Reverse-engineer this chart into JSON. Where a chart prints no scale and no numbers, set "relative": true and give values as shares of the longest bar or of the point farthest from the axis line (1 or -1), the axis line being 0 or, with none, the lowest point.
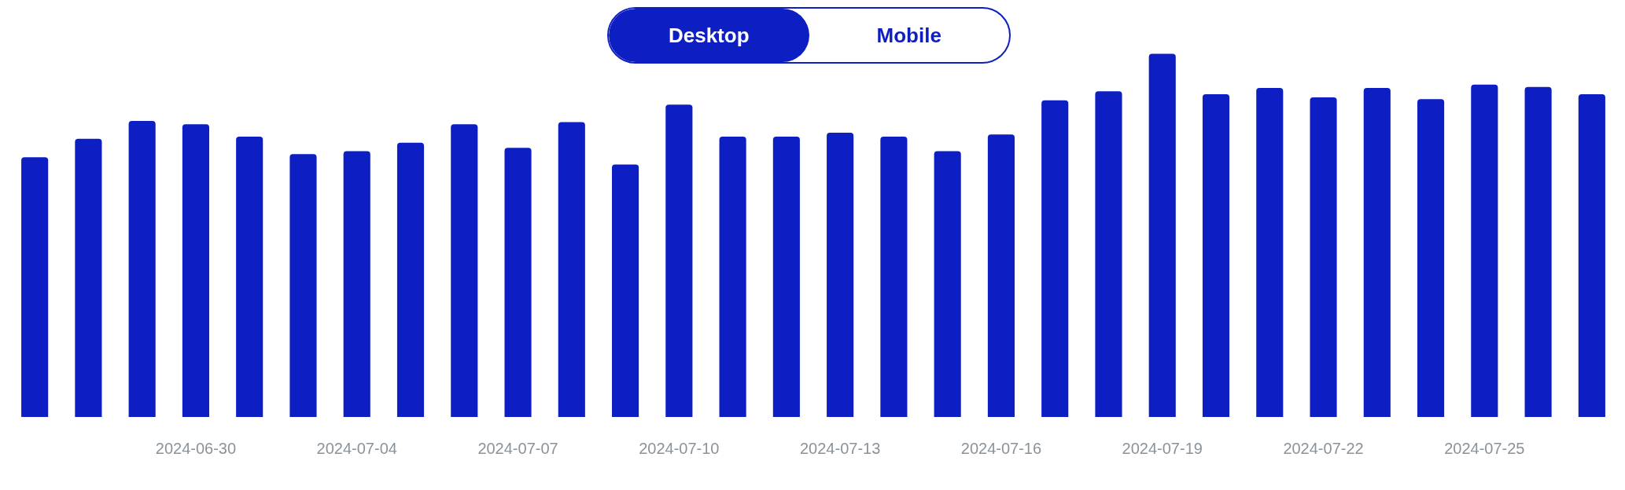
{
  "chart_data": {
    "type": "bar",
    "relative": true,
    "categories": [
      null,
      null,
      null,
      "2024-06-30",
      null,
      null,
      "2024-07-04",
      null,
      null,
      "2024-07-07",
      null,
      null,
      "2024-07-10",
      null,
      null,
      "2024-07-13",
      null,
      null,
      "2024-07-16",
      null,
      null,
      "2024-07-19",
      null,
      null,
      "2024-07-22",
      null,
      null,
      "2024-07-25",
      null,
      null
    ],
    "values": [
      0.715,
      0.766,
      0.815,
      0.806,
      0.772,
      0.724,
      0.732,
      0.755,
      0.806,
      0.741,
      0.812,
      0.695,
      0.86,
      0.772,
      0.772,
      0.783,
      0.772,
      0.732,
      0.778,
      0.872,
      0.897,
      1,
      0.889,
      0.906,
      0.88,
      0.906,
      0.875,
      0.915,
      0.909,
      0.889
    ],
    "color": "#0d1fc3",
    "grid": false,
    "annotations": [
      "Desktop",
      "Mobile"
    ]
  }
}
